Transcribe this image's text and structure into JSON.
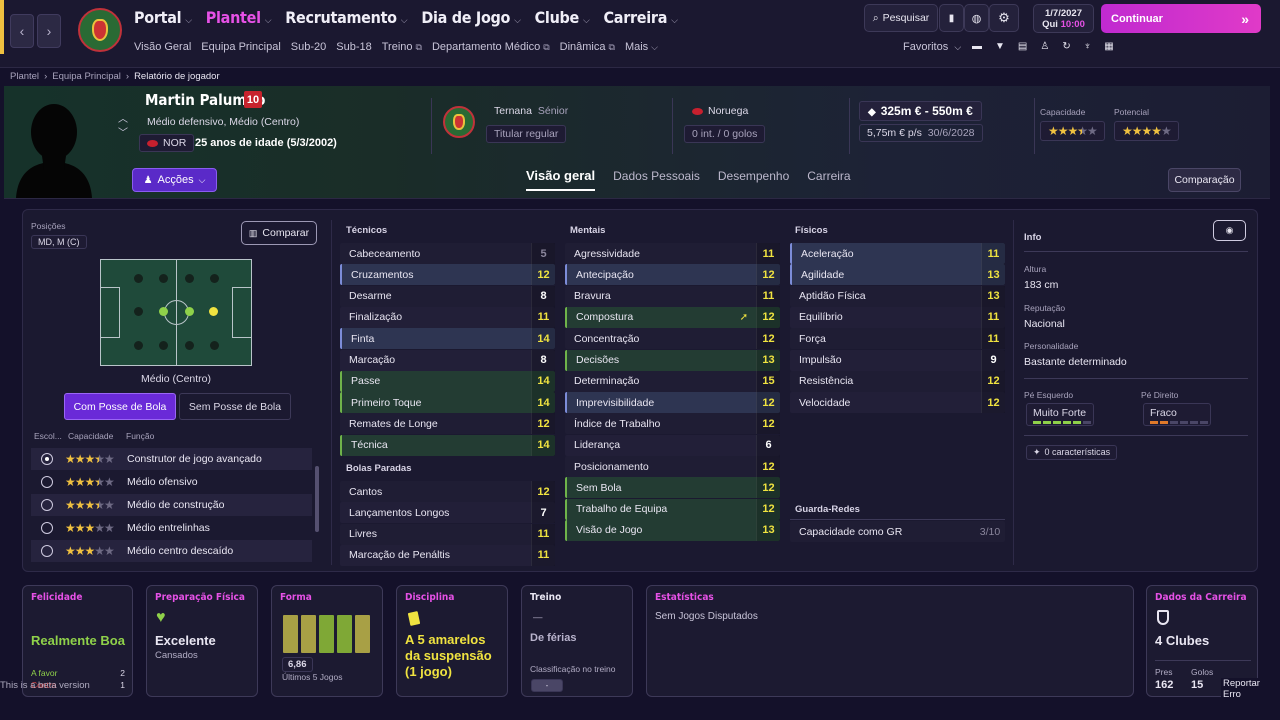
{
  "nav": {
    "items": [
      {
        "label": "Portal"
      },
      {
        "label": "Plantel"
      },
      {
        "label": "Recrutamento"
      },
      {
        "label": "Dia de Jogo"
      },
      {
        "label": "Clube"
      },
      {
        "label": "Carreira"
      }
    ],
    "sub": [
      "Visão Geral",
      "Equipa Principal",
      "Sub-20",
      "Sub-18",
      "Treino",
      "Departamento Médico",
      "Dinâmica",
      "Mais"
    ],
    "search": "Pesquisar",
    "date": "1/7/2027",
    "weekday": "Qui",
    "time": "10:00",
    "continue": "Continuar",
    "favorites": "Favoritos"
  },
  "breadcrumb": [
    "Plantel",
    "Equipa Principal",
    "Relatório de jogador"
  ],
  "player": {
    "name": "Martin Palumbo",
    "number": "10",
    "positions": "Médio defensivo, Médio (Centro)",
    "nation": "NOR",
    "age": "25 anos de idade (5/3/2002)",
    "club": "Ternana",
    "squad": "Sénior",
    "status": "Titular regular",
    "country": "Noruega",
    "intl": "0 int. / 0 golos",
    "value": "325m € - 550m €",
    "wage": "5,75m € p/s",
    "contract": "30/6/2028",
    "cap_label": "Capacidade",
    "pot_label": "Potencial",
    "capacity": 3.5,
    "potential": 4
  },
  "actions": "Acções",
  "compare_btn": "Comparação",
  "tabs": [
    "Visão geral",
    "Dados Pessoais",
    "Desempenho",
    "Carreira"
  ],
  "left": {
    "pos_label": "Posições",
    "pos": "MD, M (C)",
    "comparar": "Comparar",
    "pitch_label": "Médio (Centro)",
    "with_ball": "Com Posse de Bola",
    "without_ball": "Sem Posse de Bola",
    "cols": [
      "Escol...",
      "Capacidade",
      "Função"
    ],
    "roles": [
      {
        "name": "Construtor de jogo avançado",
        "stars": 3.5,
        "on": true
      },
      {
        "name": "Médio ofensivo",
        "stars": 3.5
      },
      {
        "name": "Médio de construção",
        "stars": 3.5
      },
      {
        "name": "Médio entrelinhas",
        "stars": 3
      },
      {
        "name": "Médio centro descaído",
        "stars": 3
      }
    ]
  },
  "attrs": {
    "tec_title": "Técnicos",
    "men_title": "Mentais",
    "fis_title": "Físicos",
    "bp_title": "Bolas Paradas",
    "gr_title": "Guarda-Redes",
    "tec": [
      [
        "Cabeceamento",
        "5"
      ],
      [
        "Cruzamentos",
        "12"
      ],
      [
        "Desarme",
        "8"
      ],
      [
        "Finalização",
        "11"
      ],
      [
        "Finta",
        "14"
      ],
      [
        "Marcação",
        "8"
      ],
      [
        "Passe",
        "14"
      ],
      [
        "Primeiro Toque",
        "14"
      ],
      [
        "Remates de Longe",
        "12"
      ],
      [
        "Técnica",
        "14"
      ]
    ],
    "bp": [
      [
        "Cantos",
        "12"
      ],
      [
        "Lançamentos Longos",
        "7"
      ],
      [
        "Livres",
        "11"
      ],
      [
        "Marcação de Penáltis",
        "11"
      ]
    ],
    "men": [
      [
        "Agressividade",
        "11"
      ],
      [
        "Antecipação",
        "12"
      ],
      [
        "Bravura",
        "11"
      ],
      [
        "Compostura",
        "12"
      ],
      [
        "Concentração",
        "12"
      ],
      [
        "Decisões",
        "13"
      ],
      [
        "Determinação",
        "15"
      ],
      [
        "Imprevisibilidade",
        "12"
      ],
      [
        "Índice de Trabalho",
        "12"
      ],
      [
        "Liderança",
        "6"
      ],
      [
        "Posicionamento",
        "12"
      ],
      [
        "Sem Bola",
        "12"
      ],
      [
        "Trabalho de Equipa",
        "12"
      ],
      [
        "Visão de Jogo",
        "13"
      ]
    ],
    "fis": [
      [
        "Aceleração",
        "11"
      ],
      [
        "Agilidade",
        "13"
      ],
      [
        "Aptidão Física",
        "13"
      ],
      [
        "Equilíbrio",
        "11"
      ],
      [
        "Força",
        "11"
      ],
      [
        "Impulsão",
        "9"
      ],
      [
        "Resistência",
        "12"
      ],
      [
        "Velocidade",
        "12"
      ]
    ],
    "gr": [
      [
        "Capacidade como GR",
        "3/10"
      ]
    ]
  },
  "info": {
    "title": "Info",
    "height_l": "Altura",
    "height": "183 cm",
    "rep_l": "Reputação",
    "rep": "Nacional",
    "pers_l": "Personalidade",
    "pers": "Bastante determinado",
    "lf_l": "Pé Esquerdo",
    "lf": "Muito Forte",
    "rf_l": "Pé Direito",
    "rf": "Fraco",
    "traits": "0 características",
    "left_foot_level": 5,
    "right_foot_level": 2
  },
  "cards": {
    "fel": {
      "t": "Felicidade",
      "v": "Realmente Boa",
      "a": "A favor",
      "a_n": "2",
      "b": "Contra",
      "b_n": "1"
    },
    "prep": {
      "t": "Preparação Física",
      "v": "Excelente",
      "s": "Cansados"
    },
    "forma": {
      "t": "Forma",
      "avg": "6,86",
      "s": "Últimos 5 Jogos",
      "ratings": [
        6.8,
        6.7,
        7.1,
        7.0,
        6.8
      ]
    },
    "disc": {
      "t": "Disciplina",
      "v": "A 5 amarelos da suspensão (1 jogo)"
    },
    "treino": {
      "t": "Treino",
      "dash": "—",
      "v": "De férias",
      "s": "Classificação no treino",
      "badge": "-"
    },
    "stats": {
      "t": "Estatísticas",
      "v": "Sem Jogos Disputados"
    },
    "car": {
      "t": "Dados da Carreira",
      "v": "4 Clubes",
      "p_l": "Pres",
      "p": "162",
      "g_l": "Golos",
      "g": "15"
    }
  },
  "footer": {
    "beta": "This is a beta version",
    "report": "Reportar Erro"
  },
  "colors": {
    "accent": "#e651e6",
    "yellow": "#f0e340",
    "green": "#8fd14a"
  }
}
